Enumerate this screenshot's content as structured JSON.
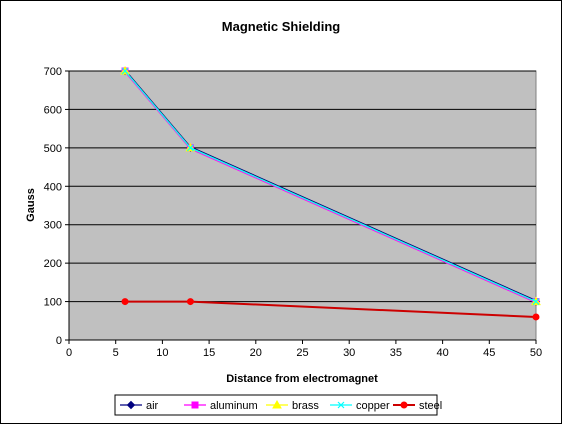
{
  "chart_data": {
    "type": "line",
    "title": "Magnetic Shielding",
    "xlabel": "Distance from electromagnet",
    "ylabel": "Gauss",
    "xlim": [
      0,
      50
    ],
    "ylim": [
      0,
      700
    ],
    "xticks": [
      0,
      5,
      10,
      15,
      20,
      25,
      30,
      35,
      40,
      45,
      50
    ],
    "yticks": [
      0,
      100,
      200,
      300,
      400,
      500,
      600,
      700
    ],
    "grid": "horizontal",
    "plot_background": "#c0c0c0",
    "legend_position": "bottom",
    "series": [
      {
        "name": "air",
        "color": "#000080",
        "marker": "diamond",
        "x": [
          6,
          13,
          50
        ],
        "y": [
          700,
          500,
          100
        ]
      },
      {
        "name": "aluminum",
        "color": "#ff00ff",
        "marker": "square",
        "x": [
          6,
          13,
          50
        ],
        "y": [
          700,
          500,
          100
        ]
      },
      {
        "name": "brass",
        "color": "#ffff00",
        "marker": "triangle",
        "x": [
          6,
          13,
          50
        ],
        "y": [
          700,
          500,
          100
        ]
      },
      {
        "name": "copper",
        "color": "#00ffff",
        "marker": "x",
        "x": [
          6,
          13,
          50
        ],
        "y": [
          700,
          500,
          100
        ]
      },
      {
        "name": "steel",
        "color": "#ff0000",
        "line_color": "#cc0000",
        "marker": "circle",
        "x": [
          6,
          13,
          50
        ],
        "y": [
          100,
          100,
          60
        ]
      }
    ]
  }
}
